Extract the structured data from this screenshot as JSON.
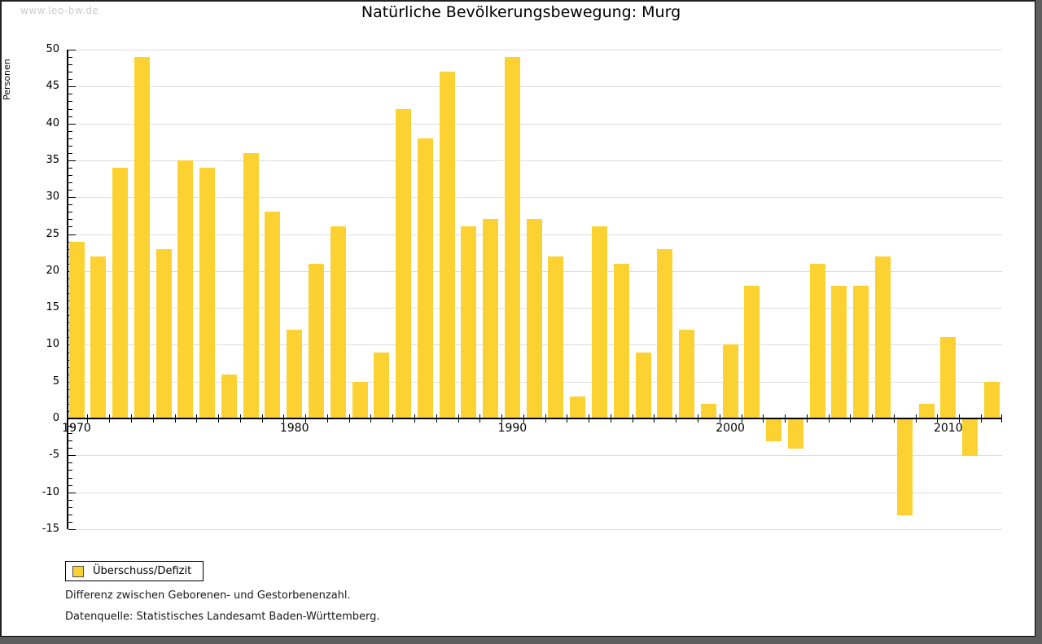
{
  "watermark": "www.leo-bw.de",
  "header": {
    "title": "Natürliche Bevölkerungsbewegung: Murg"
  },
  "legend": {
    "label": "Überschuss/Defizit",
    "swatch_color": "#fcd232"
  },
  "notes": {
    "line1": "Differenz zwischen Geborenen- und Gestorbenenzahl.",
    "line2": "Datenquelle: Statistisches Landesamt Baden-Württemberg."
  },
  "colors": {
    "bar": "#fcd232",
    "grid": "#dedede",
    "axis": "#000000",
    "watermark": "#cccccc",
    "frame_shadow": "#5e5e5e"
  },
  "chart_data": {
    "type": "bar",
    "title": "Natürliche Bevölkerungsbewegung: Murg",
    "xlabel": "",
    "ylabel": "Personen",
    "series_name": "Überschuss/Defizit",
    "categories": [
      1970,
      1971,
      1972,
      1973,
      1974,
      1975,
      1976,
      1977,
      1978,
      1979,
      1980,
      1981,
      1982,
      1983,
      1984,
      1985,
      1986,
      1987,
      1988,
      1989,
      1990,
      1991,
      1992,
      1993,
      1994,
      1995,
      1996,
      1997,
      1998,
      1999,
      2000,
      2001,
      2002,
      2003,
      2004,
      2005,
      2006,
      2007,
      2008,
      2009,
      2010,
      2011,
      2012
    ],
    "values": [
      24,
      22,
      34,
      49,
      23,
      35,
      34,
      6,
      36,
      28,
      12,
      21,
      26,
      5,
      9,
      42,
      38,
      47,
      26,
      27,
      49,
      27,
      22,
      3,
      26,
      21,
      9,
      23,
      12,
      2,
      10,
      18,
      -3,
      -4,
      21,
      18,
      18,
      22,
      -13,
      2,
      11,
      -5,
      5
    ],
    "ylim": [
      -15,
      50
    ],
    "ytick_step": 5,
    "ytick_labels": [
      "50",
      "45",
      "40",
      "35",
      "30",
      "25",
      "20",
      "15",
      "10",
      "5",
      "0",
      "-5",
      "-10",
      "-15"
    ],
    "xtick_years": [
      1970,
      1980,
      1990,
      2000,
      2010
    ],
    "xtick_labels": [
      "1970",
      "1980",
      "1990",
      "2000",
      "2010"
    ],
    "grid": true,
    "legend_position": "bottom-left"
  }
}
